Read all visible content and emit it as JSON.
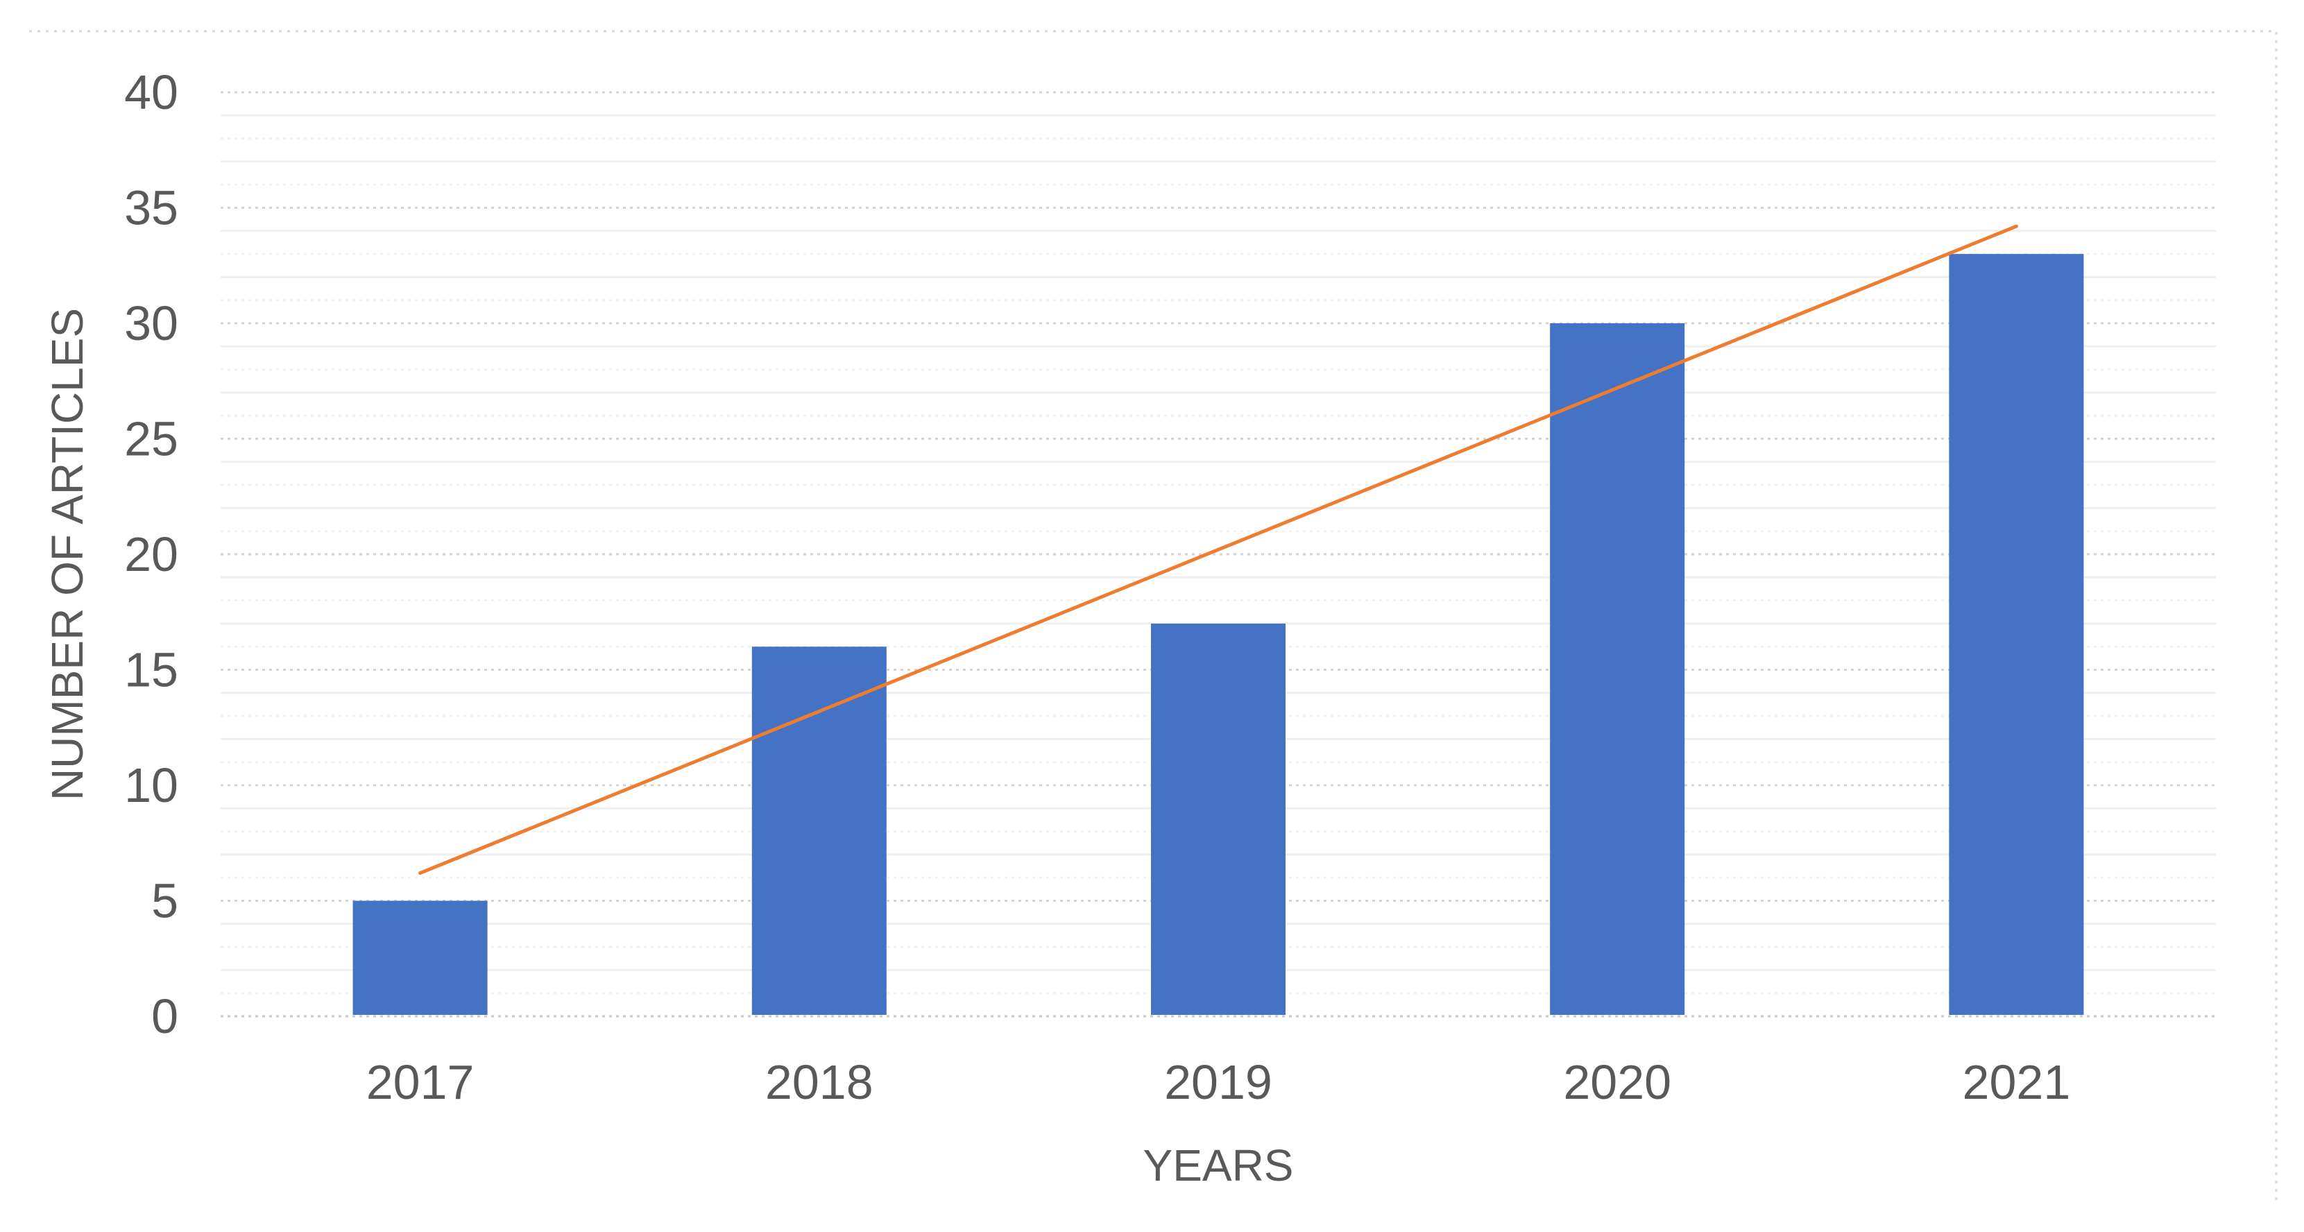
{
  "chart_data": {
    "type": "bar",
    "title": "",
    "categories": [
      "2017",
      "2018",
      "2019",
      "2020",
      "2021"
    ],
    "series": [
      {
        "name": "articles-bars",
        "type": "bar",
        "color": "#4472C4",
        "values": [
          5,
          16,
          17,
          30,
          33
        ]
      },
      {
        "name": "linear-trendline",
        "type": "line",
        "color": "#ED7D31",
        "values": [
          6.2,
          13.2,
          20.2,
          27.2,
          34.2
        ]
      }
    ],
    "xlabel": "YEARS",
    "ylabel": "NUMBER OF ARTICLES",
    "ylim": [
      0,
      40
    ],
    "y_major_step": 5,
    "y_minor_step": 1,
    "y_tick_labels": [
      "0",
      "5",
      "10",
      "15",
      "20",
      "25",
      "30",
      "35",
      "40"
    ],
    "grid": "horizontal minor+major, dotted majors",
    "legend_position": "none"
  },
  "colors": {
    "bar": "#4472C4",
    "trendline": "#ED7D31",
    "text": "#595959",
    "grid_major": "#D4D4D4",
    "grid_minor_solid": "#EFEFEF",
    "grid_minor_dotted": "#F1F1F1",
    "baseline": "#CACACA",
    "chart_border": "#D9D9D9",
    "background": "#FFFFFF"
  }
}
